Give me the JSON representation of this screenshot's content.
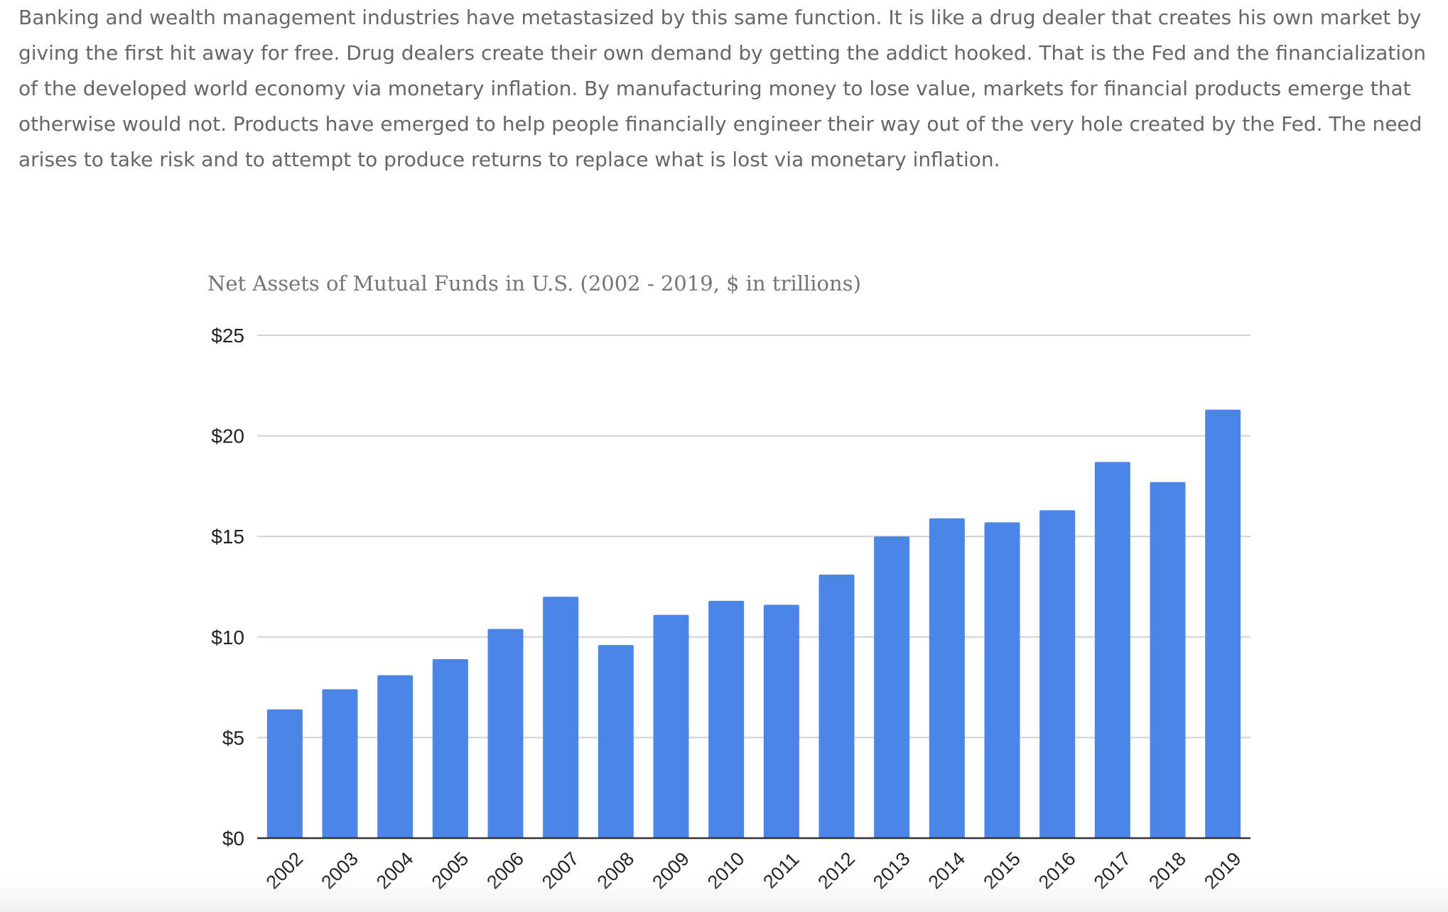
{
  "article": {
    "paragraph": "Banking and wealth management industries have metastasized by this same function. It is like a drug dealer that creates his own market by giving the first hit away for free. Drug dealers create their own demand by getting the addict hooked. That is the Fed and the financialization of the developed world economy via monetary inflation. By manufacturing money to lose value, markets for financial products emerge that otherwise would not. Products have emerged to help people financially engineer their way out of the very hole created by the Fed. The need arises to take risk and to attempt to produce returns to replace what is lost via monetary inflation."
  },
  "chart_data": {
    "type": "bar",
    "title": "Net Assets of Mutual Funds in U.S. (2002 - 2019, $ in trillions)",
    "xlabel": "",
    "ylabel": "",
    "categories": [
      "2002",
      "2003",
      "2004",
      "2005",
      "2006",
      "2007",
      "2008",
      "2009",
      "2010",
      "2011",
      "2012",
      "2013",
      "2014",
      "2015",
      "2016",
      "2017",
      "2018",
      "2019"
    ],
    "values": [
      6.4,
      7.4,
      8.1,
      8.9,
      10.4,
      12.0,
      9.6,
      11.1,
      11.8,
      11.6,
      13.1,
      15.0,
      15.9,
      15.7,
      16.3,
      18.7,
      17.7,
      21.3
    ],
    "ylim": [
      0,
      25
    ],
    "yticks": [
      {
        "value": 0,
        "label": "$0"
      },
      {
        "value": 5,
        "label": "$5"
      },
      {
        "value": 10,
        "label": "$10"
      },
      {
        "value": 15,
        "label": "$15"
      },
      {
        "value": 20,
        "label": "$20"
      },
      {
        "value": 25,
        "label": "$25"
      }
    ],
    "grid": true,
    "legend": "none",
    "bar_color": "#4a86e8",
    "gridline_color": "#d0d0d0",
    "axis_color": "#333333",
    "label_color": "#222222"
  }
}
